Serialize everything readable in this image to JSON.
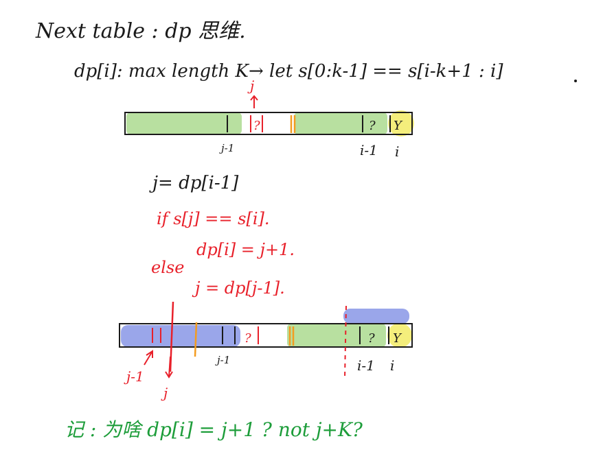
{
  "header": {
    "title": "Next table : dp 思维.",
    "definition": "dp[i]: max length K→ let s[0:k-1] == s[i-k+1 : i]"
  },
  "colors": {
    "ink": "#1a1a1a",
    "red": "#e8202a",
    "green_note": "#1d9d3a",
    "green_fill": "#b8e0a0",
    "blue_fill": "#9aa6ea",
    "yellow_fill": "#f4ee7c",
    "orange": "#f39c20"
  },
  "diagram1": {
    "j_label": "j",
    "q_left": "?",
    "q_right": "?",
    "y": "Y",
    "sub_j_minus_1": "j-1",
    "sub_i_minus_1": "i-1",
    "sub_i": "i"
  },
  "code": {
    "line1": "j= dp[i-1]",
    "line2": "if  s[j] == s[i].",
    "line3": "dp[i] = j+1.",
    "else_label": "else",
    "line4": "j = dp[j-1]."
  },
  "diagram2": {
    "q_left": "?",
    "q_right": "?",
    "y": "Y",
    "sub_j_minus_1_mid": "j-1",
    "sub_i_minus_1": "i-1",
    "sub_i": "i",
    "sub_j_minus_1_left": "j-1",
    "sub_j": "j"
  },
  "note": {
    "text": "记 : 为啥 dp[i] = j+1 ? not j+K?"
  }
}
